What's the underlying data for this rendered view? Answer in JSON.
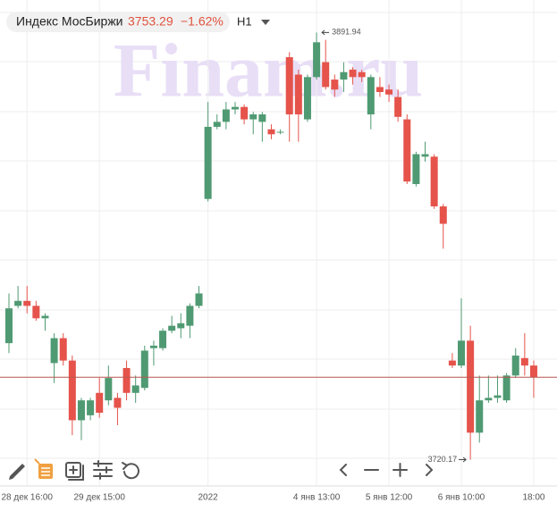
{
  "header": {
    "name": "Индекс МосБиржи",
    "change": "−1.62%",
    "interval": "H1"
  },
  "watermark": "Finam.ru",
  "chart_data": {
    "type": "candlestick",
    "categories": [
      null,
      null,
      "28 дек 16:00",
      null,
      null,
      null,
      null,
      null,
      null,
      null,
      "29 дек 15:00",
      null,
      null,
      null,
      null,
      null,
      null,
      null,
      null,
      null,
      null,
      null,
      "2022",
      null,
      null,
      null,
      null,
      null,
      null,
      null,
      null,
      null,
      null,
      null,
      "4 янв 13:00",
      null,
      null,
      null,
      null,
      null,
      null,
      null,
      "5 янв 12:00",
      null,
      null,
      null,
      null,
      null,
      null,
      null,
      "6 янв 10:00",
      null,
      null,
      null,
      null,
      null,
      null,
      null,
      "18:00"
    ],
    "open": [
      3767,
      3782,
      3784,
      3782,
      3777,
      3759,
      3769,
      3760,
      3736,
      3738,
      3747,
      3744,
      3745,
      3757,
      3747,
      3749,
      3765,
      3765,
      3772,
      3773,
      3774,
      3782,
      3825,
      3854,
      3856,
      3861,
      3862,
      3857,
      3856,
      3853,
      3852,
      3882,
      3875,
      3857,
      3874,
      3880,
      3873,
      3873,
      3877,
      3876,
      3859,
      3870,
      3869,
      3866,
      3857,
      3831,
      3842,
      3842,
      3822,
      3760,
      3758,
      3768,
      3731,
      3744,
      3745,
      3744,
      3754,
      3761,
      3758
    ],
    "high": [
      3787,
      3790,
      3790,
      3784,
      3779,
      3771,
      3771,
      3762,
      3745,
      3745,
      3753,
      3758,
      3747,
      3760,
      3754,
      3766,
      3768,
      3773,
      3778,
      3779,
      3783,
      3790,
      3864,
      3859,
      3864,
      3864,
      3863,
      3860,
      3860,
      3855,
      3853,
      3884,
      3877,
      3875,
      3891.94,
      3889,
      3875,
      3880,
      3878,
      3877,
      3875,
      3874,
      3871,
      3869,
      3859,
      3844,
      3848,
      3843,
      3823,
      3763,
      3785,
      3774,
      3754,
      3754,
      3754,
      3755,
      3765,
      3771,
      3760
    ],
    "low": [
      3763,
      3781,
      3779,
      3776,
      3772,
      3751,
      3758,
      3730,
      3728,
      3736,
      3737,
      3742,
      3734,
      3744,
      3743,
      3748,
      3758,
      3764,
      3771,
      3769,
      3769,
      3781,
      3824,
      3853,
      3853,
      3859,
      3855,
      3851,
      3848,
      3849,
      3851,
      3848,
      3848,
      3856,
      3873,
      3869,
      3866,
      3868,
      3871,
      3872,
      3853,
      3866,
      3864,
      3856,
      3831,
      3830,
      3840,
      3821,
      3805,
      3757,
      3757,
      3720.17,
      3727,
      3743,
      3743,
      3743,
      3753,
      3754,
      3745
    ],
    "close": [
      3781,
      3784,
      3782,
      3777,
      3778,
      3769,
      3760,
      3736,
      3744,
      3744,
      3739,
      3753,
      3741,
      3747,
      3750,
      3764,
      3766,
      3772,
      3774,
      3775,
      3782,
      3787,
      3854,
      3856,
      3861,
      3862,
      3857,
      3859,
      3859,
      3851,
      3852,
      3859,
      3859,
      3874,
      3888,
      3870,
      3869,
      3876,
      3874,
      3874,
      3874,
      3868,
      3867,
      3858,
      3832,
      3843,
      3843,
      3822,
      3815,
      3758,
      3768,
      3731,
      3744,
      3745,
      3746,
      3754,
      3762,
      3758,
      3753.29
    ],
    "up_color": "#4f9a72",
    "down_color": "#e5534b",
    "price_line_color": "#b9574e",
    "ylim": [
      3711,
      3905
    ]
  }
}
